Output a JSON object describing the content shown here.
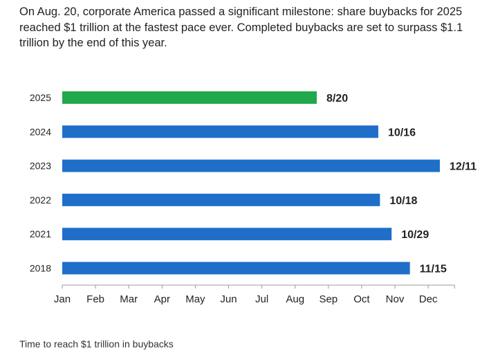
{
  "intro_text": "On Aug. 20, corporate America passed a significant milestone: share buybacks for 2025 reached $1 trillion at the fastest pace ever. Completed buybacks are set to surpass $1.1 trillion by the end of this year.",
  "caption": "Time to reach $1 trillion in buybacks",
  "colors": {
    "highlight": "#21a84a",
    "bar": "#1f6fc9",
    "axis": "#9a9a9a"
  },
  "chart_data": {
    "type": "bar",
    "orientation": "horizontal",
    "title": "",
    "xlabel": "",
    "ylabel": "",
    "categories": [
      "2025",
      "2024",
      "2023",
      "2022",
      "2021",
      "2018"
    ],
    "values": [
      7.65,
      9.5,
      11.35,
      9.55,
      9.9,
      10.45
    ],
    "value_units": "months elapsed since Jan 1",
    "data_labels": [
      "8/20",
      "10/16",
      "12/11",
      "10/18",
      "10/29",
      "11/15"
    ],
    "highlight_category": "2025",
    "x_tick_labels": [
      "Jan",
      "Feb",
      "Mar",
      "Apr",
      "May",
      "Jun",
      "Jul",
      "Aug",
      "Sep",
      "Oct",
      "Nov",
      "Dec"
    ],
    "xlim": [
      0,
      12
    ],
    "grid": false,
    "legend": "none"
  }
}
